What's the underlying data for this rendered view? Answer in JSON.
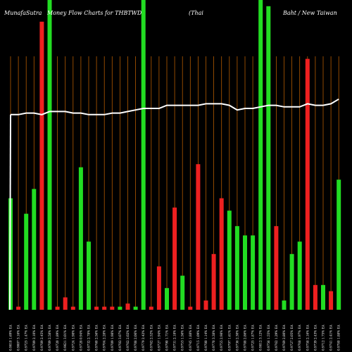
{
  "chart_data": {
    "type": "bar",
    "title_segments": [
      "MunafaSutra",
      "Money Flow  Charts for THBTWD",
      "(Thai",
      "Baht / New  Taiwan"
    ],
    "ylim": [
      0,
      100
    ],
    "line_ylim": [
      0,
      100
    ],
    "categories": [
      "0.9010 1.69% EA",
      "0.9007 3.16% EA",
      "0.9725 1.47% EA",
      "0.9709 2.10% EA",
      "0.9709 2.45% EA",
      "0.9709 2.58% EA",
      "0.9720 1.89% EA",
      "0.9621 3.01% EA",
      "0.9724 1.98% EA",
      "0.9728 0.94% EA",
      "0.9732 2.78% EA",
      "0.9760 2.56% EA",
      "0.9704 2.28% EA",
      "0.9709 1.98% EA",
      "0.9702 3.07% EA",
      "0.9762 2.02% EA",
      "0.9708 2.06% EA",
      "0.9779 2.42% EA",
      "0.9762 2.52% EA",
      "0.9727 1.94% EA",
      "0.9790 1.71% EA",
      "0.9731 2.18% EA",
      "0.9753 1.56% EA",
      "0.9745 1.88% EA",
      "0.9715 1.09% EA",
      "0.9700 1.14% EA",
      "0.9770 3.38% EA",
      "0.9755 2.98% EA",
      "0.9797 1.61% EA",
      "0.9736 2.30% EA",
      "0.9788 2.86% EA",
      "0.9725 1.87% EA",
      "0.9812 3.12% EA",
      "0.9756 1.55% EA",
      "0.9762 1.29% EA",
      "0.9769 2.80% EA",
      "0.9727 2.05% EA",
      "0.9768 1.97% EA",
      "0.9758 2.16% EA",
      "0.9739 2.43% EA",
      "0.9712 1.75% EA",
      "0.9741 2.41% EA",
      "0.9780 1.88% EA"
    ],
    "colors": [
      "green",
      "red",
      "green",
      "green",
      "red",
      "green",
      "red",
      "red",
      "red",
      "green",
      "green",
      "red",
      "red",
      "red",
      "green",
      "red",
      "green",
      "green",
      "red",
      "red",
      "green",
      "red",
      "green",
      "red",
      "red",
      "red",
      "red",
      "red",
      "green",
      "green",
      "green",
      "green",
      "green",
      "green",
      "red",
      "green",
      "green",
      "green",
      "red",
      "red",
      "green",
      "red",
      "green"
    ],
    "values": [
      36,
      1,
      31,
      39,
      93,
      100,
      1,
      4,
      1,
      46,
      22,
      1,
      1,
      1,
      1,
      2,
      1,
      100,
      1,
      14,
      7,
      33,
      11,
      1,
      47,
      3,
      18,
      36,
      32,
      27,
      24,
      24,
      100,
      98,
      27,
      3,
      18,
      22,
      81,
      8,
      8,
      6,
      42
    ],
    "line_values": [
      63,
      63,
      63.5,
      63.5,
      63,
      64,
      64,
      64,
      63.5,
      63.5,
      63,
      63,
      63,
      63.5,
      63.5,
      64,
      64.5,
      65,
      65,
      65,
      66,
      66,
      66,
      66,
      66,
      66.5,
      66.5,
      66.5,
      66,
      64.5,
      65,
      65,
      65.5,
      66,
      66,
      65.5,
      65.5,
      65.5,
      66.5,
      66,
      66,
      66.5,
      68
    ],
    "colors_hex": {
      "green": "#22dd22",
      "red": "#ee2020",
      "grid": "#b35a00",
      "line": "#ffffff",
      "background": "#000000"
    },
    "grid": true,
    "xlabel": "",
    "ylabel": ""
  }
}
